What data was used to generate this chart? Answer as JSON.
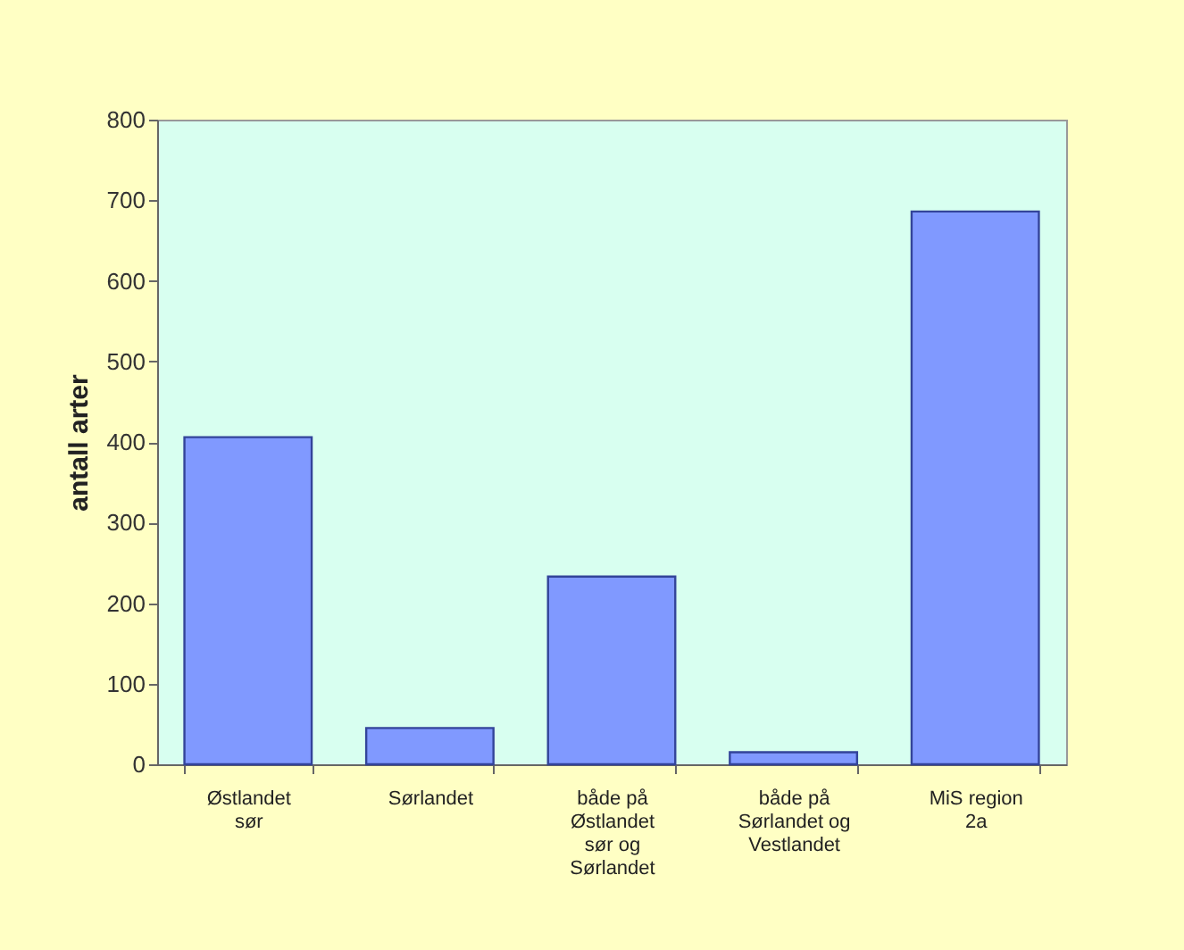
{
  "chart_data": {
    "type": "bar",
    "ylabel": "antall arter",
    "categories": [
      "Østlandet sør",
      "Sørlandet",
      "både på Østlandet sør og Sørlandet",
      "både på Sørlandet og Vestlandet",
      "MiS region 2a"
    ],
    "values": [
      406,
      45,
      233,
      15,
      686
    ],
    "color": "#8099ff",
    "ylim": [
      0,
      800
    ],
    "yticks": [
      0,
      100,
      200,
      300,
      400,
      500,
      600,
      700,
      800
    ],
    "grid": false
  }
}
